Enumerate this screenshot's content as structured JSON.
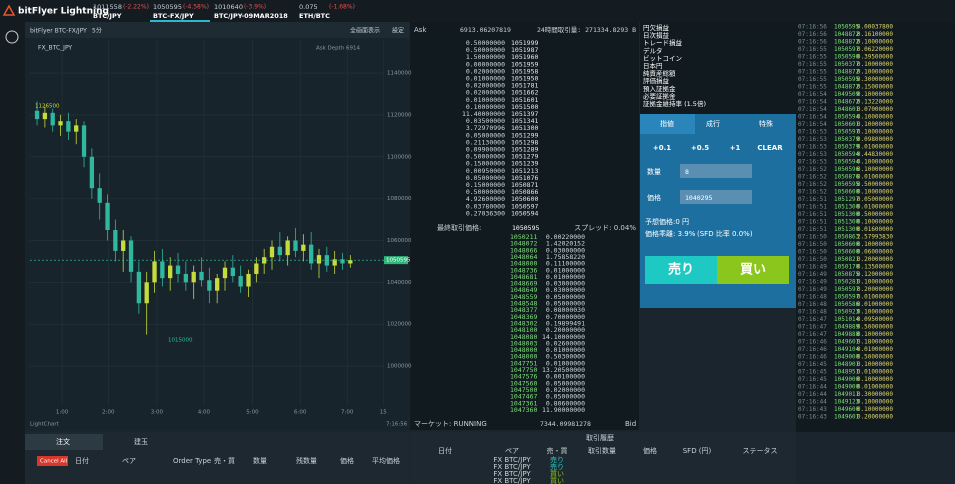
{
  "header": {
    "logo": "bitFlyer Lightning",
    "tickers": [
      {
        "price": "1011558",
        "change": "(-2.22%)",
        "pair": "BTC/JPY"
      },
      {
        "price": "1050595",
        "change": "(-4.58%)",
        "pair": "BTC-FX/JPY"
      },
      {
        "price": "1010640",
        "change": "(-3.9%)",
        "pair": "BTC/JPY-09MAR2018"
      },
      {
        "price": "0.075",
        "change": "(-1.68%)",
        "pair": "ETH/BTC"
      }
    ]
  },
  "chart_data": {
    "type": "candlestick",
    "title": "bitFlyer BTC-FX/JPY",
    "interval": "5分",
    "buttons": [
      "全画面表示",
      "設定"
    ],
    "legend": "FX_BTC_JPY",
    "high_label": "1126500",
    "low_label": "1015000",
    "depth_label": "Ask Depth 6914",
    "last_price": 1050595,
    "up_color": "#c5dc3c",
    "down_color": "#2fb7a0",
    "ohlc": [
      [
        1122000,
        1126500,
        1115000,
        1118000
      ],
      [
        1118000,
        1124000,
        1114000,
        1121000
      ],
      [
        1121000,
        1123000,
        1112000,
        1115000
      ],
      [
        1115000,
        1120000,
        1110000,
        1117000
      ],
      [
        1117000,
        1121000,
        1108000,
        1112000
      ],
      [
        1112000,
        1118000,
        1106000,
        1115000
      ],
      [
        1115000,
        1117000,
        1095000,
        1100000
      ],
      [
        1100000,
        1104000,
        1080000,
        1085000
      ],
      [
        1085000,
        1092000,
        1070000,
        1078000
      ],
      [
        1078000,
        1082000,
        1060000,
        1065000
      ],
      [
        1065000,
        1070000,
        1050000,
        1055000
      ],
      [
        1055000,
        1065000,
        1045000,
        1060000
      ],
      [
        1060000,
        1062000,
        1040000,
        1045000
      ],
      [
        1045000,
        1050000,
        1025000,
        1030000
      ],
      [
        1030000,
        1045000,
        1015000,
        1040000
      ],
      [
        1040000,
        1055000,
        1035000,
        1050000
      ],
      [
        1050000,
        1056000,
        1038000,
        1042000
      ],
      [
        1042000,
        1052000,
        1036000,
        1048000
      ],
      [
        1048000,
        1054000,
        1040000,
        1044000
      ],
      [
        1044000,
        1050000,
        1036000,
        1040000
      ],
      [
        1040000,
        1048000,
        1032000,
        1045000
      ],
      [
        1045000,
        1052000,
        1038000,
        1041000
      ],
      [
        1041000,
        1047000,
        1030000,
        1036000
      ],
      [
        1036000,
        1044000,
        1030000,
        1042000
      ],
      [
        1042000,
        1050000,
        1036000,
        1047000
      ],
      [
        1047000,
        1053000,
        1040000,
        1043000
      ],
      [
        1043000,
        1048000,
        1035000,
        1038000
      ],
      [
        1038000,
        1046000,
        1033000,
        1044000
      ],
      [
        1044000,
        1052000,
        1040000,
        1049000
      ],
      [
        1049000,
        1056000,
        1044000,
        1052000
      ],
      [
        1052000,
        1060000,
        1046000,
        1057000
      ],
      [
        1057000,
        1064000,
        1050000,
        1053000
      ],
      [
        1053000,
        1062000,
        1048000,
        1060000
      ],
      [
        1060000,
        1066000,
        1052000,
        1055000
      ],
      [
        1055000,
        1063000,
        1050000,
        1058000
      ],
      [
        1058000,
        1064000,
        1046000,
        1049000
      ],
      [
        1049000,
        1056000,
        1042000,
        1053000
      ],
      [
        1053000,
        1057000,
        1045000,
        1048000
      ],
      [
        1048000,
        1055000,
        1044000,
        1051000
      ],
      [
        1051000,
        1054000,
        1046000,
        1049000
      ],
      [
        1049000,
        1053000,
        1047000,
        1050595
      ]
    ],
    "ylim": [
      980900,
      1155800
    ],
    "yticks": [
      1000000,
      1020000,
      1040000,
      1060000,
      1080000,
      1100000,
      1120000,
      1140000
    ],
    "xlim": [
      -0.9,
      44.3
    ],
    "xticks": [
      {
        "value": 3.2,
        "label": "1:00"
      },
      {
        "value": 9.1,
        "label": "2:00"
      },
      {
        "value": 15.3,
        "label": "3:00"
      },
      {
        "value": 21.3,
        "label": "4:00"
      },
      {
        "value": 27.5,
        "label": "5:00"
      },
      {
        "value": 33.6,
        "label": "6:00"
      },
      {
        "value": 39.6,
        "label": "7:00"
      },
      {
        "value": 44.2,
        "label": "15"
      }
    ],
    "footer": "LightChart",
    "clock": "7:16:56"
  },
  "order_book": {
    "ask_header": "Ask",
    "ask_total": "6913.06207819",
    "volume": "24時間取引量: 271334.8293 B",
    "asks": [
      [
        "0.50000000",
        "1051999"
      ],
      [
        "0.50000000",
        "1051987"
      ],
      [
        "1.50000000",
        "1051960"
      ],
      [
        "0.00000000",
        "1051959"
      ],
      [
        "0.02000000",
        "1051958"
      ],
      [
        "0.01000000",
        "1051950"
      ],
      [
        "0.02000000",
        "1051781"
      ],
      [
        "0.02000000",
        "1051662"
      ],
      [
        "0.01000000",
        "1051601"
      ],
      [
        "0.10000000",
        "1051500"
      ],
      [
        "11.40000000",
        "1051397"
      ],
      [
        "0.03500000",
        "1051341"
      ],
      [
        "3.72970996",
        "1051300"
      ],
      [
        "0.05000000",
        "1051299"
      ],
      [
        "0.21130000",
        "1051298"
      ],
      [
        "0.09900000",
        "1051289"
      ],
      [
        "0.50000000",
        "1051279"
      ],
      [
        "0.15000000",
        "1051239"
      ],
      [
        "0.00950000",
        "1051213"
      ],
      [
        "0.05000000",
        "1051076"
      ],
      [
        "0.15000000",
        "1050871"
      ],
      [
        "0.50000000",
        "1050866"
      ],
      [
        "4.92600000",
        "1050600"
      ],
      [
        "0.03780000",
        "1050597"
      ],
      [
        "0.27036300",
        "1050594"
      ]
    ],
    "last_label": "最終取引価格:",
    "last_price": "1050595",
    "spread": "スプレッド: 0.04%",
    "bids": [
      [
        "1050211",
        "0.00220000"
      ],
      [
        "1048072",
        "1.42020152"
      ],
      [
        "1048066",
        "0.03000000"
      ],
      [
        "1048064",
        "1.75858220"
      ],
      [
        "1048000",
        "0.11100000"
      ],
      [
        "1048736",
        "0.01000000"
      ],
      [
        "1048681",
        "0.01000000"
      ],
      [
        "1048669",
        "0.03000000"
      ],
      [
        "1048649",
        "0.03000000"
      ],
      [
        "1048559",
        "0.05000000"
      ],
      [
        "1048548",
        "0.05000000"
      ],
      [
        "1048377",
        "0.08000030"
      ],
      [
        "1048369",
        "0.70000000"
      ],
      [
        "1048302",
        "0.19899491"
      ],
      [
        "1048100",
        "0.20000000"
      ],
      [
        "1048080",
        "14.10000000"
      ],
      [
        "1048003",
        "0.02600000"
      ],
      [
        "1048000",
        "0.01000000"
      ],
      [
        "1048000",
        "0.50300000"
      ],
      [
        "1047751",
        "0.01000000"
      ],
      [
        "1047750",
        "13.20500000"
      ],
      [
        "1047576",
        "0.00100000"
      ],
      [
        "1047560",
        "0.05000000"
      ],
      [
        "1047500",
        "0.02000000"
      ],
      [
        "1047467",
        "0.05000000"
      ],
      [
        "1047361",
        "0.80600000"
      ],
      [
        "1047360",
        "11.90000000"
      ]
    ],
    "market": "マーケット: RUNNING",
    "bid_total": "7344.09981278",
    "bid_header": "Bid"
  },
  "account": {
    "labels": [
      "円欠損益",
      "日次損益",
      "トレード損益",
      "デルタ",
      "ビットコイン",
      "日本円",
      "純資産総額",
      "評価損益",
      "預入証拠金",
      "必要証拠金",
      "証拠金維持率 (1.5倍)"
    ]
  },
  "order_form": {
    "tabs": [
      "指値",
      "成行",
      "特殊"
    ],
    "steps": [
      "+0.1",
      "+0.5",
      "+1",
      "CLEAR"
    ],
    "qty_label": "数量",
    "qty": "8",
    "price_label": "価格",
    "price": "1040295",
    "est": "予想価格:0 円",
    "deviation": "価格乖離: 3.9%",
    "sfd": "(SFD 比率 0.0%)",
    "sell": "売り",
    "buy": "買い"
  },
  "trades": [
    [
      "07:16:56",
      "1050595",
      "0.00037800"
    ],
    [
      "07:16:56",
      "1048872",
      "0.16100000"
    ],
    [
      "07:16:56",
      "1048872",
      "0.10000000"
    ],
    [
      "07:16:55",
      "1050597",
      "0.06220000"
    ],
    [
      "07:16:55",
      "1050590",
      "0.39500000"
    ],
    [
      "07:16:55",
      "1050377",
      "0.10000000"
    ],
    [
      "07:16:55",
      "1048872",
      "0.10000000"
    ],
    [
      "07:16:55",
      "1050595",
      "0.30000000"
    ],
    [
      "07:16:55",
      "1048872",
      "0.15000000"
    ],
    [
      "07:16:54",
      "1049509",
      "0.10000000"
    ],
    [
      "07:16:54",
      "1048672",
      "0.13220000"
    ],
    [
      "07:16:54",
      "1048601",
      "0.07000000"
    ],
    [
      "07:16:54",
      "1050594",
      "0.10000000"
    ],
    [
      "07:16:54",
      "1050601",
      "0.10000000"
    ],
    [
      "07:16:53",
      "1050597",
      "0.10000000"
    ],
    [
      "07:16:53",
      "1050379",
      "0.09800000"
    ],
    [
      "07:16:53",
      "1050379",
      "0.01000000"
    ],
    [
      "07:16:53",
      "1050594",
      "0.44830000"
    ],
    [
      "07:16:53",
      "1050594",
      "0.10000000"
    ],
    [
      "07:16:52",
      "1050596",
      "0.10000000"
    ],
    [
      "07:16:52",
      "1050876",
      "0.01000000"
    ],
    [
      "07:16:52",
      "1050595",
      "0.50000000"
    ],
    [
      "07:16:52",
      "1050600",
      "0.10000000"
    ],
    [
      "07:16:51",
      "1051297",
      "0.05000000"
    ],
    [
      "07:16:51",
      "1051300",
      "0.01000000"
    ],
    [
      "07:16:51",
      "1051300",
      "0.50000000"
    ],
    [
      "07:16:51",
      "1051300",
      "0.10000000"
    ],
    [
      "07:16:51",
      "1051300",
      "0.01600000"
    ],
    [
      "07:16:50",
      "1050863",
      "2.57993830"
    ],
    [
      "07:16:50",
      "1050600",
      "0.10000000"
    ],
    [
      "07:16:50",
      "1050600",
      "0.06000000"
    ],
    [
      "07:16:50",
      "1050821",
      "0.20000000"
    ],
    [
      "07:16:49",
      "1050170",
      "0.13500000"
    ],
    [
      "07:16:49",
      "1050875",
      "0.12000000"
    ],
    [
      "07:16:49",
      "1050281",
      "0.10000000"
    ],
    [
      "07:16:49",
      "1050597",
      "0.20000000"
    ],
    [
      "07:16:48",
      "1050597",
      "0.01000000"
    ],
    [
      "07:16:48",
      "1050586",
      "0.01000000"
    ],
    [
      "07:16:48",
      "1050923",
      "0.10000000"
    ],
    [
      "07:16:47",
      "1051014",
      "0.09500000"
    ],
    [
      "07:16:47",
      "1049889",
      "0.50000000"
    ],
    [
      "07:16:47",
      "1049888",
      "0.10000000"
    ],
    [
      "07:16:46",
      "1049601",
      "0.18000000"
    ],
    [
      "07:16:46",
      "1049104",
      "0.01000000"
    ],
    [
      "07:16:46",
      "1049000",
      "0.50000000"
    ],
    [
      "07:16:45",
      "1048901",
      "0.10000000"
    ],
    [
      "07:16:45",
      "1048951",
      "0.01000000"
    ],
    [
      "07:16:45",
      "1049000",
      "0.10000000"
    ],
    [
      "07:16:44",
      "1049000",
      "0.01000000"
    ],
    [
      "07:16:44",
      "1049011",
      "0.30000000"
    ],
    [
      "07:16:44",
      "1049123",
      "0.10000000"
    ],
    [
      "07:16:43",
      "1049600",
      "0.10000000"
    ],
    [
      "07:16:43",
      "1049601",
      "0.20000000"
    ]
  ],
  "orders": {
    "tabs": [
      "注文",
      "建玉"
    ],
    "cancel": "Cancel All",
    "columns": [
      "日付",
      "ペア",
      "Order Type",
      "売・買",
      "数量",
      "残数量",
      "価格",
      "平均価格"
    ]
  },
  "history": {
    "title": "取引履歴",
    "columns": [
      "日付",
      "ペア",
      "売・買",
      "取引数量",
      "価格",
      "SFD (円)",
      "ステータス"
    ],
    "rows": [
      [
        "FX BTC/JPY",
        "売り"
      ],
      [
        "FX BTC/JPY",
        "売り"
      ],
      [
        "FX BTC/JPY",
        "買い"
      ],
      [
        "FX BTC/JPY",
        "買い"
      ]
    ]
  }
}
